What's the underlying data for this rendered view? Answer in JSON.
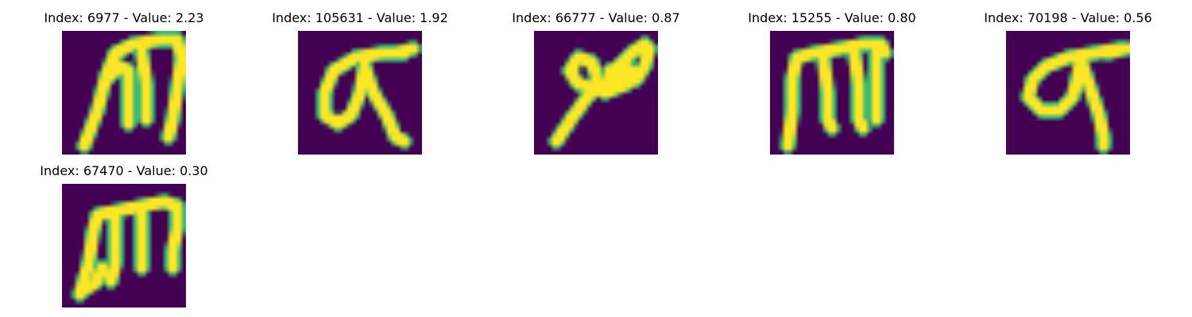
{
  "colors": {
    "background": "#440154",
    "foreground": "#fde725",
    "edge": "#3fbc73"
  },
  "panels": [
    {
      "title": "Index: 6977 - Value: 2.23",
      "index": 6977,
      "value": 2.23,
      "glyph": "m",
      "strokes": [
        [
          [
            5,
            26
          ],
          [
            8,
            18
          ],
          [
            10,
            10
          ],
          [
            12,
            5
          ],
          [
            16,
            3
          ],
          [
            22,
            2
          ],
          [
            26,
            2
          ],
          [
            27,
            6
          ],
          [
            26,
            13
          ],
          [
            25,
            20
          ],
          [
            24,
            24
          ]
        ],
        [
          [
            10,
            11
          ],
          [
            13,
            8
          ],
          [
            15,
            9
          ],
          [
            15,
            15
          ],
          [
            15,
            21
          ]
        ],
        [
          [
            18,
            5
          ],
          [
            19,
            12
          ],
          [
            19,
            20
          ]
        ]
      ]
    },
    {
      "title": "Index: 105631 - Value: 1.92",
      "index": 105631,
      "value": 1.92,
      "glyph": "sigma",
      "strokes": [
        [
          [
            24,
            5
          ],
          [
            19,
            5
          ],
          [
            13,
            6
          ],
          [
            8,
            9
          ],
          [
            6,
            14
          ],
          [
            6,
            19
          ],
          [
            9,
            21
          ],
          [
            12,
            19
          ],
          [
            14,
            14
          ],
          [
            15,
            8
          ]
        ],
        [
          [
            15,
            8
          ],
          [
            17,
            14
          ],
          [
            20,
            19
          ],
          [
            22,
            24
          ],
          [
            24,
            25
          ]
        ],
        [
          [
            22,
            5
          ],
          [
            26,
            4
          ]
        ]
      ]
    },
    {
      "title": "Index: 66777 - Value: 0.87",
      "index": 66777,
      "value": 0.87,
      "glyph": "loop",
      "strokes": [
        [
          [
            5,
            25
          ],
          [
            9,
            19
          ],
          [
            12,
            15
          ],
          [
            14,
            13
          ]
        ],
        [
          [
            14,
            13
          ],
          [
            10,
            12
          ],
          [
            8,
            9
          ],
          [
            10,
            6
          ],
          [
            13,
            7
          ],
          [
            14,
            10
          ],
          [
            15,
            13
          ]
        ],
        [
          [
            15,
            13
          ],
          [
            17,
            11
          ],
          [
            19,
            8
          ],
          [
            22,
            5
          ],
          [
            25,
            3
          ],
          [
            26,
            4
          ]
        ],
        [
          [
            26,
            4
          ],
          [
            25,
            8
          ],
          [
            23,
            11
          ],
          [
            20,
            12
          ],
          [
            17,
            12
          ]
        ],
        [
          [
            17,
            9
          ],
          [
            20,
            8
          ],
          [
            22,
            9
          ],
          [
            20,
            10
          ],
          [
            17,
            9
          ]
        ],
        [
          [
            14,
            13
          ],
          [
            16,
            14
          ],
          [
            21,
            12
          ]
        ]
      ]
    },
    {
      "title": "Index: 15255 - Value: 0.80",
      "index": 15255,
      "value": 0.8,
      "glyph": "m",
      "strokes": [
        [
          [
            4,
            26
          ],
          [
            5,
            18
          ],
          [
            5,
            11
          ],
          [
            6,
            6
          ],
          [
            10,
            5
          ],
          [
            16,
            4
          ],
          [
            21,
            3
          ],
          [
            25,
            3
          ],
          [
            26,
            5
          ]
        ],
        [
          [
            12,
            6
          ],
          [
            13,
            14
          ],
          [
            13,
            20
          ],
          [
            14,
            22
          ]
        ],
        [
          [
            19,
            5
          ],
          [
            20,
            12
          ],
          [
            20,
            20
          ],
          [
            21,
            22
          ]
        ],
        [
          [
            24,
            4
          ],
          [
            24,
            12
          ],
          [
            24,
            20
          ]
        ]
      ]
    },
    {
      "title": "Index: 70198 - Value: 0.56",
      "index": 70198,
      "value": 0.56,
      "glyph": "sigma",
      "strokes": [
        [
          [
            26,
            4
          ],
          [
            20,
            5
          ],
          [
            14,
            6
          ],
          [
            9,
            8
          ],
          [
            6,
            11
          ],
          [
            5,
            15
          ],
          [
            8,
            18
          ],
          [
            12,
            18
          ],
          [
            15,
            15
          ],
          [
            16,
            11
          ],
          [
            17,
            6
          ]
        ],
        [
          [
            17,
            7
          ],
          [
            19,
            13
          ],
          [
            21,
            19
          ],
          [
            22,
            24
          ],
          [
            22,
            26
          ]
        ],
        [
          [
            23,
            5
          ],
          [
            27,
            4
          ]
        ]
      ]
    },
    {
      "title": "Index: 67470 - Value: 0.30",
      "index": 67470,
      "value": 0.3,
      "glyph": "m",
      "strokes": [
        [
          [
            4,
            25
          ],
          [
            6,
            18
          ],
          [
            7,
            11
          ],
          [
            8,
            7
          ],
          [
            13,
            6
          ],
          [
            18,
            5
          ],
          [
            23,
            4
          ],
          [
            26,
            5
          ],
          [
            26,
            10
          ],
          [
            25,
            15
          ],
          [
            25,
            19
          ]
        ],
        [
          [
            12,
            7
          ],
          [
            12,
            12
          ],
          [
            12,
            18
          ],
          [
            11,
            22
          ]
        ],
        [
          [
            18,
            7
          ],
          [
            18,
            14
          ],
          [
            18,
            19
          ]
        ],
        [
          [
            5,
            24
          ],
          [
            8,
            22
          ],
          [
            9,
            19
          ]
        ]
      ]
    }
  ]
}
